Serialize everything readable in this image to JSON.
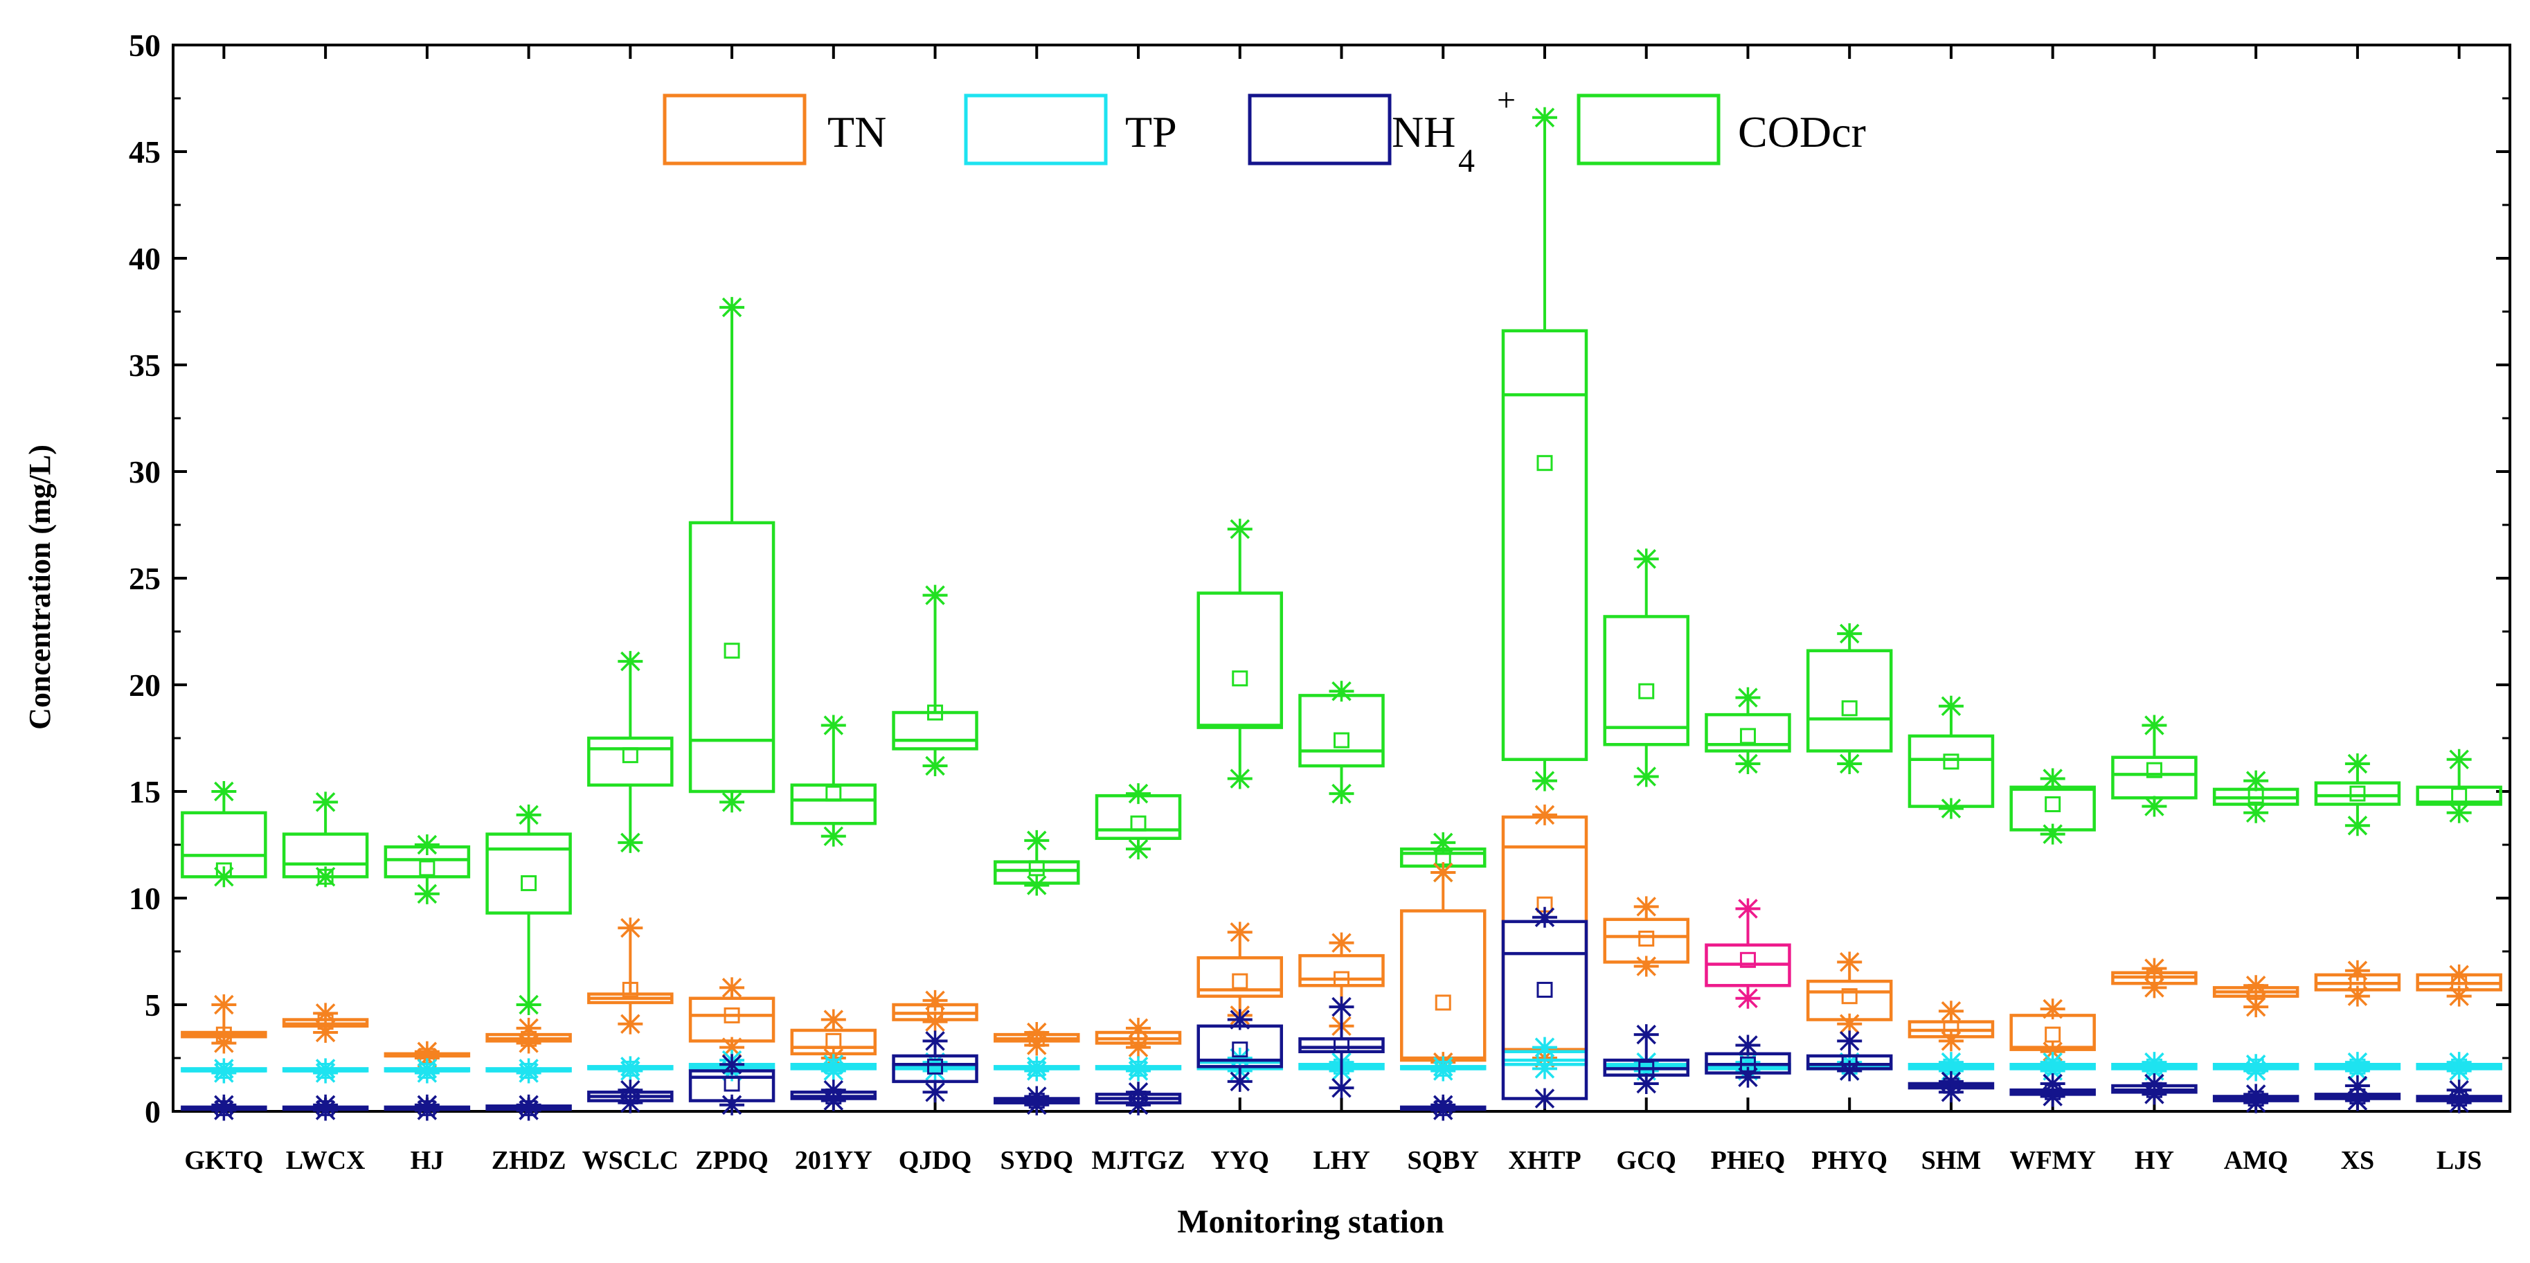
{
  "chart_data": {
    "type": "box",
    "title": "",
    "xlabel": "Monitoring station",
    "ylabel": "Concentration (mg/L)",
    "ylim": [
      0,
      50
    ],
    "yticks": [
      "0",
      "5",
      "10",
      "15",
      "20",
      "25",
      "30",
      "35",
      "40",
      "45",
      "50"
    ],
    "legend": [
      {
        "key": "TN",
        "label": "TN",
        "color": "#f58220"
      },
      {
        "key": "TP",
        "label": "TP",
        "color": "#1ee3f0"
      },
      {
        "key": "NH4",
        "label": "NH",
        "sub": "4",
        "sup": "+",
        "color": "#14148c"
      },
      {
        "key": "COD",
        "label": "CODcr",
        "color": "#22e022"
      }
    ],
    "categories": [
      "GKTQ",
      "LWCX",
      "HJ",
      "ZHDZ",
      "WSCLC",
      "ZPDQ",
      "201YY",
      "QJDQ",
      "SYDQ",
      "MJTGZ",
      "YYQ",
      "LHY",
      "SQBY",
      "XHTP",
      "GCQ",
      "PHEQ",
      "PHYQ",
      "SHM",
      "WFMY",
      "HY",
      "AMQ",
      "XS",
      "LJS"
    ],
    "series": [
      {
        "name": "CODcr",
        "key": "COD",
        "color": "#22e022",
        "boxes": [
          {
            "q1": 11.0,
            "median": 12.0,
            "q3": 14.0,
            "mean": 11.3,
            "min": 11.0,
            "max": 15.0
          },
          {
            "q1": 11.0,
            "median": 11.6,
            "q3": 13.0,
            "mean": 11.0,
            "min": 11.0,
            "max": 14.5
          },
          {
            "q1": 11.0,
            "median": 11.8,
            "q3": 12.4,
            "mean": 11.4,
            "min": 10.2,
            "max": 12.5
          },
          {
            "q1": 9.3,
            "median": 12.3,
            "q3": 13.0,
            "mean": 10.7,
            "min": 5.0,
            "max": 13.9
          },
          {
            "q1": 15.3,
            "median": 17.0,
            "q3": 17.5,
            "mean": 16.7,
            "min": 12.6,
            "max": 21.1
          },
          {
            "q1": 15.0,
            "median": 17.4,
            "q3": 27.6,
            "mean": 21.6,
            "min": 14.5,
            "max": 37.7
          },
          {
            "q1": 13.5,
            "median": 14.6,
            "q3": 15.3,
            "mean": 14.9,
            "min": 12.9,
            "max": 18.1
          },
          {
            "q1": 17.0,
            "median": 17.4,
            "q3": 18.7,
            "mean": 18.7,
            "min": 16.2,
            "max": 24.2
          },
          {
            "q1": 10.7,
            "median": 11.3,
            "q3": 11.7,
            "mean": 11.4,
            "min": 10.6,
            "max": 12.7
          },
          {
            "q1": 12.8,
            "median": 13.2,
            "q3": 14.8,
            "mean": 13.5,
            "min": 12.3,
            "max": 14.9
          },
          {
            "q1": 18.0,
            "median": 18.1,
            "q3": 24.3,
            "mean": 20.3,
            "min": 15.6,
            "max": 27.3
          },
          {
            "q1": 16.2,
            "median": 16.9,
            "q3": 19.5,
            "mean": 17.4,
            "min": 14.9,
            "max": 19.7
          },
          {
            "q1": 11.5,
            "median": 12.1,
            "q3": 12.3,
            "mean": 11.9,
            "min": 11.2,
            "max": 12.6
          },
          {
            "q1": 16.5,
            "median": 33.6,
            "q3": 36.6,
            "mean": 30.4,
            "min": 15.5,
            "max": 46.6
          },
          {
            "q1": 17.2,
            "median": 18.0,
            "q3": 23.2,
            "mean": 19.7,
            "min": 15.7,
            "max": 25.9
          },
          {
            "q1": 16.9,
            "median": 17.2,
            "q3": 18.6,
            "mean": 17.6,
            "min": 16.3,
            "max": 19.4
          },
          {
            "q1": 16.9,
            "median": 18.4,
            "q3": 21.6,
            "mean": 18.9,
            "min": 16.3,
            "max": 22.4
          },
          {
            "q1": 14.3,
            "median": 16.5,
            "q3": 17.6,
            "mean": 16.4,
            "min": 14.2,
            "max": 19.0
          },
          {
            "q1": 13.2,
            "median": 15.1,
            "q3": 15.2,
            "mean": 14.4,
            "min": 13.0,
            "max": 15.6
          },
          {
            "q1": 14.7,
            "median": 15.8,
            "q3": 16.6,
            "mean": 16.0,
            "min": 14.3,
            "max": 18.1
          },
          {
            "q1": 14.4,
            "median": 14.7,
            "q3": 15.1,
            "mean": 14.8,
            "min": 14.0,
            "max": 15.5
          },
          {
            "q1": 14.4,
            "median": 14.8,
            "q3": 15.4,
            "mean": 14.9,
            "min": 13.4,
            "max": 16.3
          },
          {
            "q1": 14.4,
            "median": 14.5,
            "q3": 15.2,
            "mean": 14.8,
            "min": 14.0,
            "max": 16.5
          }
        ]
      },
      {
        "name": "TN",
        "key": "TN",
        "color": "#f58220",
        "boxes": [
          {
            "q1": 3.5,
            "median": 3.6,
            "q3": 3.7,
            "mean": 3.6,
            "min": 3.2,
            "max": 5.0
          },
          {
            "q1": 4.0,
            "median": 4.1,
            "q3": 4.3,
            "mean": 4.2,
            "min": 3.7,
            "max": 4.6
          },
          {
            "q1": 2.6,
            "median": 2.6,
            "q3": 2.7,
            "mean": 2.6,
            "min": 2.5,
            "max": 2.8
          },
          {
            "q1": 3.3,
            "median": 3.4,
            "q3": 3.6,
            "mean": 3.4,
            "min": 3.2,
            "max": 3.9
          },
          {
            "q1": 5.1,
            "median": 5.3,
            "q3": 5.5,
            "mean": 5.7,
            "min": 4.1,
            "max": 8.6
          },
          {
            "q1": 3.3,
            "median": 4.5,
            "q3": 5.3,
            "mean": 4.5,
            "min": 3.0,
            "max": 5.8
          },
          {
            "q1": 2.7,
            "median": 3.0,
            "q3": 3.8,
            "mean": 3.3,
            "min": 2.5,
            "max": 4.3
          },
          {
            "q1": 4.3,
            "median": 4.6,
            "q3": 5.0,
            "mean": 4.6,
            "min": 4.2,
            "max": 5.2
          },
          {
            "q1": 3.3,
            "median": 3.4,
            "q3": 3.6,
            "mean": 3.4,
            "min": 3.1,
            "max": 3.7
          },
          {
            "q1": 3.2,
            "median": 3.4,
            "q3": 3.7,
            "mean": 3.4,
            "min": 3.0,
            "max": 3.9
          },
          {
            "q1": 5.4,
            "median": 5.7,
            "q3": 7.2,
            "mean": 6.1,
            "min": 4.5,
            "max": 8.4
          },
          {
            "q1": 5.9,
            "median": 6.2,
            "q3": 7.3,
            "mean": 6.2,
            "min": 4.0,
            "max": 7.9
          },
          {
            "q1": 2.4,
            "median": 2.5,
            "q3": 9.4,
            "mean": 5.1,
            "min": 2.3,
            "max": 11.2
          },
          {
            "q1": 2.9,
            "median": 12.4,
            "q3": 13.8,
            "mean": 9.7,
            "min": 2.5,
            "max": 13.9
          },
          {
            "q1": 7.0,
            "median": 8.2,
            "q3": 9.0,
            "mean": 8.1,
            "min": 6.8,
            "max": 9.6
          },
          {
            "q1": 5.9,
            "median": 6.9,
            "q3": 7.8,
            "mean": 7.1,
            "min": 5.3,
            "max": 9.5,
            "color": "#ee1a8c"
          },
          {
            "q1": 4.3,
            "median": 5.6,
            "q3": 6.1,
            "mean": 5.4,
            "min": 4.1,
            "max": 7.0
          },
          {
            "q1": 3.5,
            "median": 3.8,
            "q3": 4.2,
            "mean": 3.9,
            "min": 3.3,
            "max": 4.7
          },
          {
            "q1": 2.9,
            "median": 3.0,
            "q3": 4.5,
            "mean": 3.6,
            "min": 2.8,
            "max": 4.8
          },
          {
            "q1": 6.0,
            "median": 6.3,
            "q3": 6.5,
            "mean": 6.3,
            "min": 5.8,
            "max": 6.7
          },
          {
            "q1": 5.4,
            "median": 5.6,
            "q3": 5.8,
            "mean": 5.6,
            "min": 4.9,
            "max": 5.9
          },
          {
            "q1": 5.7,
            "median": 6.0,
            "q3": 6.4,
            "mean": 6.0,
            "min": 5.4,
            "max": 6.6
          },
          {
            "q1": 5.7,
            "median": 6.0,
            "q3": 6.4,
            "mean": 6.0,
            "min": 5.4,
            "max": 6.4
          }
        ]
      },
      {
        "name": "TP",
        "key": "TP",
        "color": "#1ee3f0",
        "boxes": [
          {
            "q1": 1.9,
            "median": 1.9,
            "q3": 2.0,
            "mean": 1.9,
            "min": 1.8,
            "max": 2.0
          },
          {
            "q1": 1.9,
            "median": 1.9,
            "q3": 2.0,
            "mean": 1.9,
            "min": 1.8,
            "max": 2.0
          },
          {
            "q1": 1.9,
            "median": 1.9,
            "q3": 2.0,
            "mean": 1.9,
            "min": 1.8,
            "max": 2.0
          },
          {
            "q1": 1.9,
            "median": 1.9,
            "q3": 2.0,
            "mean": 1.9,
            "min": 1.8,
            "max": 2.0
          },
          {
            "q1": 2.0,
            "median": 2.0,
            "q3": 2.1,
            "mean": 2.0,
            "min": 1.9,
            "max": 2.1
          },
          {
            "q1": 2.0,
            "median": 2.1,
            "q3": 2.2,
            "mean": 2.1,
            "min": 1.9,
            "max": 2.4
          },
          {
            "q1": 2.0,
            "median": 2.1,
            "q3": 2.2,
            "mean": 2.1,
            "min": 1.9,
            "max": 2.2
          },
          {
            "q1": 2.0,
            "median": 2.1,
            "q3": 2.2,
            "mean": 2.1,
            "min": 1.9,
            "max": 2.3
          },
          {
            "q1": 2.0,
            "median": 2.0,
            "q3": 2.1,
            "mean": 2.0,
            "min": 1.9,
            "max": 2.1
          },
          {
            "q1": 2.0,
            "median": 2.0,
            "q3": 2.1,
            "mean": 2.0,
            "min": 1.9,
            "max": 2.1
          },
          {
            "q1": 2.0,
            "median": 2.1,
            "q3": 2.3,
            "mean": 2.2,
            "min": 1.9,
            "max": 2.5
          },
          {
            "q1": 2.0,
            "median": 2.1,
            "q3": 2.2,
            "mean": 2.1,
            "min": 1.9,
            "max": 2.3
          },
          {
            "q1": 2.0,
            "median": 2.0,
            "q3": 2.1,
            "mean": 2.0,
            "min": 1.9,
            "max": 2.1
          },
          {
            "q1": 2.2,
            "median": 2.4,
            "q3": 2.8,
            "mean": 2.5,
            "min": 2.0,
            "max": 3.0
          },
          {
            "q1": 2.0,
            "median": 2.1,
            "q3": 2.2,
            "mean": 2.1,
            "min": 1.9,
            "max": 2.3
          },
          {
            "q1": 2.0,
            "median": 2.1,
            "q3": 2.2,
            "mean": 2.1,
            "min": 1.9,
            "max": 2.3
          },
          {
            "q1": 2.0,
            "median": 2.1,
            "q3": 2.2,
            "mean": 2.1,
            "min": 1.9,
            "max": 2.3
          },
          {
            "q1": 2.0,
            "median": 2.1,
            "q3": 2.2,
            "mean": 2.1,
            "min": 1.9,
            "max": 2.3
          },
          {
            "q1": 2.0,
            "median": 2.1,
            "q3": 2.2,
            "mean": 2.1,
            "min": 1.9,
            "max": 2.3
          },
          {
            "q1": 2.0,
            "median": 2.1,
            "q3": 2.2,
            "mean": 2.1,
            "min": 1.9,
            "max": 2.3
          },
          {
            "q1": 2.0,
            "median": 2.1,
            "q3": 2.2,
            "mean": 2.1,
            "min": 1.9,
            "max": 2.2
          },
          {
            "q1": 2.0,
            "median": 2.1,
            "q3": 2.2,
            "mean": 2.1,
            "min": 1.9,
            "max": 2.3
          },
          {
            "q1": 2.0,
            "median": 2.1,
            "q3": 2.2,
            "mean": 2.1,
            "min": 1.9,
            "max": 2.3
          }
        ]
      },
      {
        "name": "NH4+",
        "key": "NH4",
        "color": "#14148c",
        "boxes": [
          {
            "q1": 0.1,
            "median": 0.15,
            "q3": 0.2,
            "mean": 0.15,
            "min": 0.05,
            "max": 0.3
          },
          {
            "q1": 0.1,
            "median": 0.15,
            "q3": 0.2,
            "mean": 0.15,
            "min": 0.05,
            "max": 0.3
          },
          {
            "q1": 0.1,
            "median": 0.15,
            "q3": 0.2,
            "mean": 0.15,
            "min": 0.05,
            "max": 0.3
          },
          {
            "q1": 0.1,
            "median": 0.15,
            "q3": 0.25,
            "mean": 0.15,
            "min": 0.05,
            "max": 0.3
          },
          {
            "q1": 0.5,
            "median": 0.7,
            "q3": 0.9,
            "mean": 0.7,
            "min": 0.4,
            "max": 1.0
          },
          {
            "q1": 0.5,
            "median": 1.6,
            "q3": 1.9,
            "mean": 1.3,
            "min": 0.3,
            "max": 2.2
          },
          {
            "q1": 0.6,
            "median": 0.7,
            "q3": 0.9,
            "mean": 0.7,
            "min": 0.5,
            "max": 1.0
          },
          {
            "q1": 1.4,
            "median": 2.2,
            "q3": 2.6,
            "mean": 2.1,
            "min": 0.9,
            "max": 3.3
          },
          {
            "q1": 0.4,
            "median": 0.5,
            "q3": 0.6,
            "mean": 0.5,
            "min": 0.3,
            "max": 0.7
          },
          {
            "q1": 0.4,
            "median": 0.6,
            "q3": 0.8,
            "mean": 0.6,
            "min": 0.3,
            "max": 0.9
          },
          {
            "q1": 2.1,
            "median": 2.4,
            "q3": 4.0,
            "mean": 2.9,
            "min": 1.4,
            "max": 4.3
          },
          {
            "q1": 2.8,
            "median": 3.0,
            "q3": 3.4,
            "mean": 3.1,
            "min": 1.1,
            "max": 4.9
          },
          {
            "q1": 0.1,
            "median": 0.15,
            "q3": 0.2,
            "mean": 0.15,
            "min": 0.05,
            "max": 0.3
          },
          {
            "q1": 0.6,
            "median": 7.4,
            "q3": 8.9,
            "mean": 5.7,
            "min": 0.6,
            "max": 9.1
          },
          {
            "q1": 1.7,
            "median": 2.0,
            "q3": 2.4,
            "mean": 2.0,
            "min": 1.3,
            "max": 3.6
          },
          {
            "q1": 1.8,
            "median": 2.2,
            "q3": 2.7,
            "mean": 2.2,
            "min": 1.6,
            "max": 3.1
          },
          {
            "q1": 2.0,
            "median": 2.2,
            "q3": 2.6,
            "mean": 2.3,
            "min": 1.9,
            "max": 3.3
          },
          {
            "q1": 1.1,
            "median": 1.2,
            "q3": 1.3,
            "mean": 1.2,
            "min": 0.9,
            "max": 1.4
          },
          {
            "q1": 0.8,
            "median": 0.9,
            "q3": 1.0,
            "mean": 0.9,
            "min": 0.7,
            "max": 1.3
          },
          {
            "q1": 0.9,
            "median": 1.0,
            "q3": 1.2,
            "mean": 1.0,
            "min": 0.8,
            "max": 1.3
          },
          {
            "q1": 0.5,
            "median": 0.6,
            "q3": 0.7,
            "mean": 0.6,
            "min": 0.4,
            "max": 0.8
          },
          {
            "q1": 0.6,
            "median": 0.7,
            "q3": 0.8,
            "mean": 0.7,
            "min": 0.5,
            "max": 1.2
          },
          {
            "q1": 0.5,
            "median": 0.6,
            "q3": 0.7,
            "mean": 0.6,
            "min": 0.4,
            "max": 1.0
          }
        ]
      }
    ]
  }
}
